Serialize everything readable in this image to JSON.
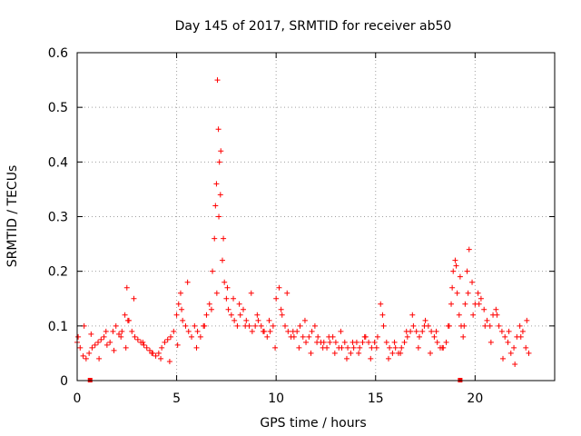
{
  "chart_data": {
    "type": "scatter",
    "title": "Day 145 of 2017, SRMTID for receiver ab50",
    "xlabel": "GPS time / hours",
    "ylabel": "SRMTID / TECUs",
    "xlim": [
      0,
      24
    ],
    "ylim": [
      0,
      0.6
    ],
    "x_ticks": [
      0,
      5,
      10,
      15,
      20
    ],
    "x_tick_labels": [
      "0",
      "5",
      "10",
      "15",
      "20"
    ],
    "y_ticks": [
      0,
      0.1,
      0.2,
      0.3,
      0.4,
      0.5,
      0.6
    ],
    "y_tick_labels": [
      "0",
      "0.1",
      "0.2",
      "0.3",
      "0.4",
      "0.5",
      "0.6"
    ],
    "grid": true,
    "marker": "plus",
    "series": [
      {
        "name": "SRMTID",
        "color": "#ff0000",
        "x": [
          0.0,
          0.15,
          0.3,
          0.45,
          0.6,
          0.75,
          0.9,
          1.05,
          1.2,
          1.35,
          1.5,
          1.65,
          1.8,
          1.95,
          2.1,
          2.25,
          2.4,
          2.5,
          2.6,
          2.75,
          2.9,
          3.05,
          3.2,
          3.35,
          3.5,
          3.65,
          3.8,
          3.95,
          4.1,
          4.25,
          4.4,
          4.55,
          4.7,
          4.85,
          5.0,
          5.1,
          5.2,
          5.3,
          5.45,
          5.6,
          5.75,
          5.9,
          6.05,
          6.2,
          6.35,
          6.5,
          6.65,
          6.8,
          6.9,
          6.95,
          7.0,
          7.05,
          7.1,
          7.15,
          7.2,
          7.3,
          7.4,
          7.5,
          7.6,
          7.75,
          7.9,
          8.05,
          8.2,
          8.35,
          8.5,
          8.65,
          8.8,
          8.95,
          9.1,
          9.25,
          9.4,
          9.55,
          9.7,
          9.85,
          10.0,
          10.15,
          10.3,
          10.45,
          10.6,
          10.75,
          10.9,
          11.05,
          11.2,
          11.35,
          11.5,
          11.65,
          11.8,
          11.95,
          12.1,
          12.25,
          12.4,
          12.55,
          12.7,
          12.85,
          13.0,
          13.15,
          13.3,
          13.45,
          13.6,
          13.75,
          13.9,
          14.05,
          14.2,
          14.35,
          14.5,
          14.65,
          14.8,
          14.95,
          15.1,
          15.25,
          15.4,
          15.55,
          15.7,
          15.85,
          16.0,
          16.15,
          16.3,
          16.45,
          16.6,
          16.75,
          16.9,
          17.05,
          17.2,
          17.35,
          17.5,
          17.65,
          17.8,
          17.95,
          18.1,
          18.25,
          18.4,
          18.55,
          18.7,
          18.8,
          18.9,
          19.0,
          19.1,
          19.2,
          19.3,
          19.4,
          19.5,
          19.6,
          19.7,
          19.85,
          20.0,
          20.15,
          20.3,
          20.45,
          20.6,
          20.75,
          20.9,
          21.05,
          21.2,
          21.35,
          21.5,
          21.65,
          21.8,
          21.95,
          22.1,
          22.25,
          22.4,
          22.55,
          22.7,
          0.05,
          0.35,
          0.7,
          1.1,
          1.45,
          1.85,
          2.2,
          2.45,
          2.55,
          2.85,
          3.3,
          3.75,
          4.2,
          4.65,
          5.05,
          5.25,
          5.55,
          6.0,
          6.4,
          6.75,
          7.02,
          7.12,
          7.22,
          7.35,
          7.55,
          7.85,
          8.15,
          8.45,
          8.75,
          9.05,
          9.35,
          9.65,
          9.95,
          10.25,
          10.55,
          10.85,
          11.15,
          11.45,
          11.75,
          12.05,
          12.35,
          12.65,
          12.95,
          13.25,
          13.55,
          13.85,
          14.15,
          14.45,
          14.75,
          15.05,
          15.35,
          15.65,
          15.95,
          16.25,
          16.55,
          16.85,
          17.15,
          17.45,
          17.75,
          18.05,
          18.35,
          18.65,
          18.85,
          19.05,
          19.25,
          19.45,
          19.65,
          19.9,
          20.2,
          20.5,
          20.8,
          21.1,
          21.4,
          21.7,
          22.0,
          22.3,
          22.6
        ],
        "y": [
          0.07,
          0.06,
          0.045,
          0.04,
          0.05,
          0.06,
          0.065,
          0.07,
          0.075,
          0.08,
          0.065,
          0.07,
          0.09,
          0.1,
          0.085,
          0.09,
          0.12,
          0.17,
          0.11,
          0.09,
          0.08,
          0.075,
          0.07,
          0.065,
          0.06,
          0.055,
          0.05,
          0.045,
          0.05,
          0.06,
          0.07,
          0.075,
          0.08,
          0.09,
          0.12,
          0.14,
          0.16,
          0.11,
          0.1,
          0.09,
          0.08,
          0.1,
          0.09,
          0.08,
          0.1,
          0.12,
          0.14,
          0.2,
          0.26,
          0.32,
          0.36,
          0.55,
          0.46,
          0.4,
          0.34,
          0.22,
          0.18,
          0.15,
          0.13,
          0.12,
          0.11,
          0.1,
          0.12,
          0.13,
          0.11,
          0.1,
          0.09,
          0.1,
          0.11,
          0.1,
          0.09,
          0.08,
          0.09,
          0.1,
          0.15,
          0.17,
          0.12,
          0.1,
          0.09,
          0.08,
          0.08,
          0.09,
          0.1,
          0.08,
          0.07,
          0.08,
          0.09,
          0.1,
          0.08,
          0.07,
          0.07,
          0.06,
          0.07,
          0.08,
          0.07,
          0.06,
          0.06,
          0.07,
          0.06,
          0.05,
          0.06,
          0.07,
          0.06,
          0.07,
          0.08,
          0.07,
          0.06,
          0.07,
          0.08,
          0.14,
          0.1,
          0.07,
          0.06,
          0.05,
          0.06,
          0.05,
          0.06,
          0.07,
          0.08,
          0.09,
          0.1,
          0.09,
          0.08,
          0.09,
          0.11,
          0.1,
          0.09,
          0.08,
          0.07,
          0.06,
          0.06,
          0.07,
          0.1,
          0.14,
          0.2,
          0.22,
          0.16,
          0.12,
          0.1,
          0.08,
          0.14,
          0.2,
          0.24,
          0.18,
          0.14,
          0.16,
          0.15,
          0.13,
          0.11,
          0.1,
          0.12,
          0.13,
          0.1,
          0.09,
          0.08,
          0.07,
          0.05,
          0.06,
          0.08,
          0.1,
          0.09,
          0.06,
          0.05,
          0.08,
          0.1,
          0.085,
          0.04,
          0.09,
          0.055,
          0.08,
          0.06,
          0.11,
          0.15,
          0.07,
          0.05,
          0.04,
          0.035,
          0.065,
          0.13,
          0.18,
          0.06,
          0.1,
          0.13,
          0.16,
          0.3,
          0.42,
          0.26,
          0.17,
          0.15,
          0.14,
          0.1,
          0.16,
          0.12,
          0.09,
          0.11,
          0.06,
          0.13,
          0.16,
          0.09,
          0.06,
          0.11,
          0.05,
          0.07,
          0.06,
          0.08,
          0.05,
          0.09,
          0.04,
          0.07,
          0.05,
          0.08,
          0.04,
          0.06,
          0.12,
          0.04,
          0.07,
          0.05,
          0.09,
          0.12,
          0.06,
          0.1,
          0.05,
          0.09,
          0.06,
          0.1,
          0.17,
          0.21,
          0.19,
          0.1,
          0.16,
          0.12,
          0.14,
          0.1,
          0.07,
          0.12,
          0.04,
          0.09,
          0.03,
          0.08,
          0.11
        ]
      }
    ],
    "x_markers": [
      0.65,
      19.25
    ]
  }
}
